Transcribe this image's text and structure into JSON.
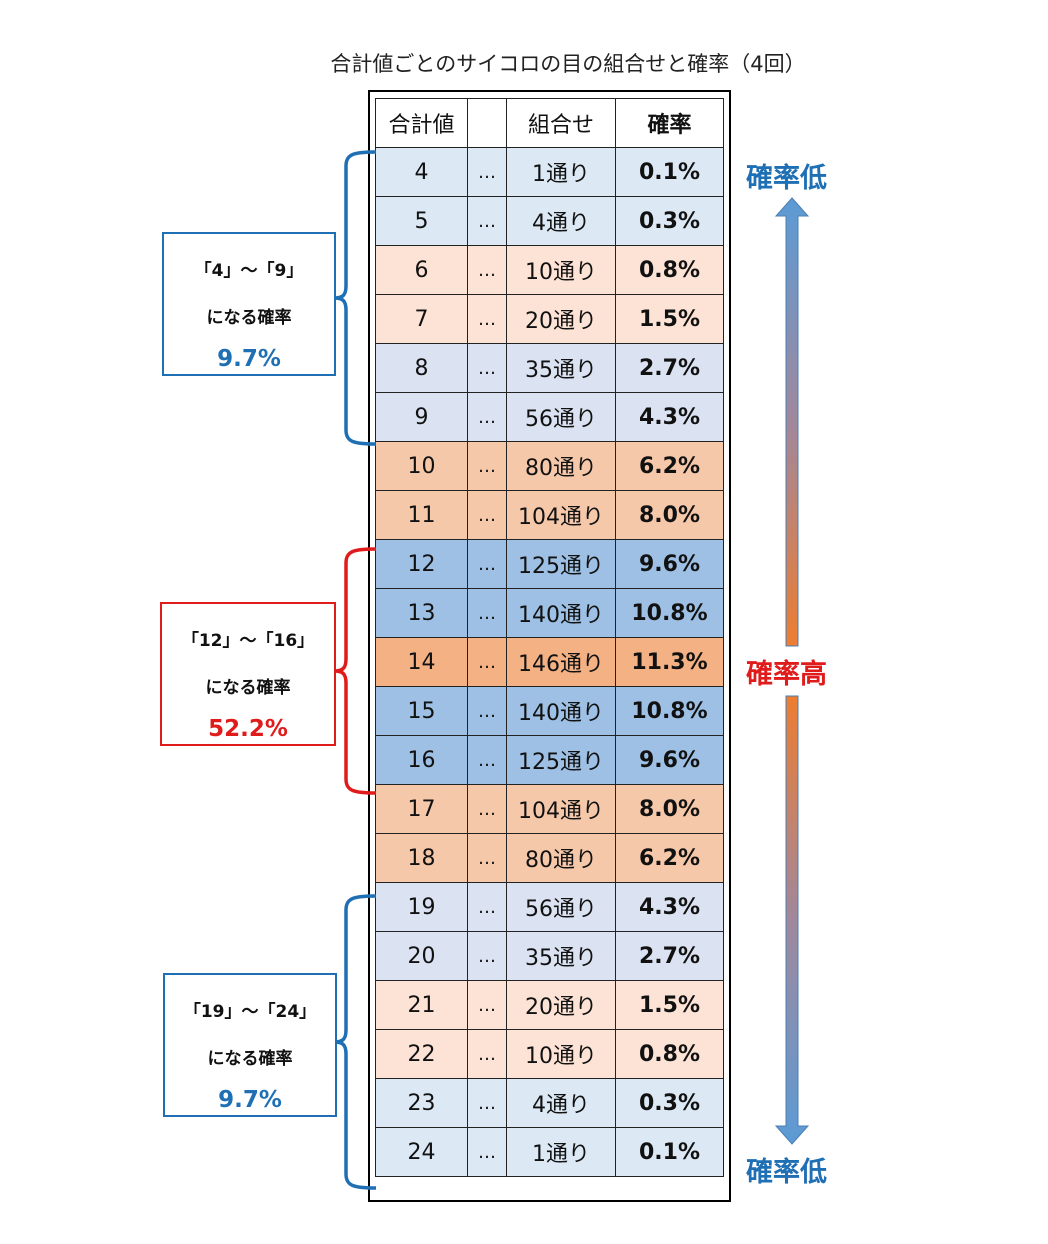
{
  "title": "合計値ごとのサイコロの目の組合せと確率（4回）",
  "table": {
    "headers": {
      "sum": "合計値",
      "dots": "",
      "combos": "組合せ",
      "prob": "確率"
    },
    "rows": [
      {
        "sum": "4",
        "dots": "…",
        "combos": "1通り",
        "prob": "0.1%",
        "tone": 0
      },
      {
        "sum": "5",
        "dots": "…",
        "combos": "4通り",
        "prob": "0.3%",
        "tone": 0
      },
      {
        "sum": "6",
        "dots": "…",
        "combos": "10通り",
        "prob": "0.8%",
        "tone": 1
      },
      {
        "sum": "7",
        "dots": "…",
        "combos": "20通り",
        "prob": "1.5%",
        "tone": 1
      },
      {
        "sum": "8",
        "dots": "…",
        "combos": "35通り",
        "prob": "2.7%",
        "tone": 2
      },
      {
        "sum": "9",
        "dots": "…",
        "combos": "56通り",
        "prob": "4.3%",
        "tone": 2
      },
      {
        "sum": "10",
        "dots": "…",
        "combos": "80通り",
        "prob": "6.2%",
        "tone": 3
      },
      {
        "sum": "11",
        "dots": "…",
        "combos": "104通り",
        "prob": "8.0%",
        "tone": 3
      },
      {
        "sum": "12",
        "dots": "…",
        "combos": "125通り",
        "prob": "9.6%",
        "tone": 4
      },
      {
        "sum": "13",
        "dots": "…",
        "combos": "140通り",
        "prob": "10.8%",
        "tone": 4
      },
      {
        "sum": "14",
        "dots": "…",
        "combos": "146通り",
        "prob": "11.3%",
        "tone": 5
      },
      {
        "sum": "15",
        "dots": "…",
        "combos": "140通り",
        "prob": "10.8%",
        "tone": 4
      },
      {
        "sum": "16",
        "dots": "…",
        "combos": "125通り",
        "prob": "9.6%",
        "tone": 4
      },
      {
        "sum": "17",
        "dots": "…",
        "combos": "104通り",
        "prob": "8.0%",
        "tone": 3
      },
      {
        "sum": "18",
        "dots": "…",
        "combos": "80通り",
        "prob": "6.2%",
        "tone": 3
      },
      {
        "sum": "19",
        "dots": "…",
        "combos": "56通り",
        "prob": "4.3%",
        "tone": 2
      },
      {
        "sum": "20",
        "dots": "…",
        "combos": "35通り",
        "prob": "2.7%",
        "tone": 2
      },
      {
        "sum": "21",
        "dots": "…",
        "combos": "20通り",
        "prob": "1.5%",
        "tone": 1
      },
      {
        "sum": "22",
        "dots": "…",
        "combos": "10通り",
        "prob": "0.8%",
        "tone": 1
      },
      {
        "sum": "23",
        "dots": "…",
        "combos": "4通り",
        "prob": "0.3%",
        "tone": 0
      },
      {
        "sum": "24",
        "dots": "…",
        "combos": "1通り",
        "prob": "0.1%",
        "tone": 0
      }
    ]
  },
  "callouts": {
    "low_range": {
      "range": "「4」～「9」",
      "caption": "になる確率",
      "value": "9.7%"
    },
    "mid_range": {
      "range": "「12」～「16」",
      "caption": "になる確率",
      "value": "52.2%"
    },
    "high_range": {
      "range": "「19」～「24」",
      "caption": "になる確率",
      "value": "9.7%"
    }
  },
  "scale": {
    "top_label": "確率低",
    "middle_label": "確率高",
    "bottom_label": "確率低"
  },
  "colors": {
    "blue": "#1f6fb5",
    "red": "#e01b1b",
    "arrow_blue": "#5b9bd5",
    "arrow_orange": "#ed7d31"
  }
}
